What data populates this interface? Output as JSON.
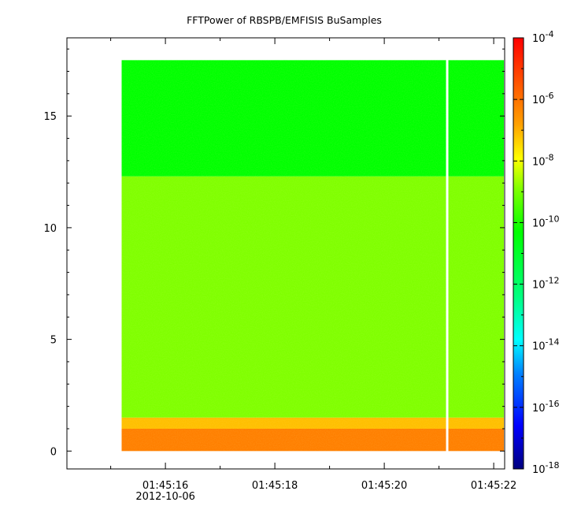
{
  "chart_data": {
    "type": "heatmap",
    "title": "FFTPower of RBSPB/EMFISIS  BuSamples",
    "xlabel": "",
    "ylabel": "",
    "x_date": "2012-10-06",
    "x_ticks": [
      "01:45:16",
      "01:45:18",
      "01:45:20",
      "01:45:22"
    ],
    "y_ticks": [
      "0",
      "5",
      "10",
      "15"
    ],
    "ylim": [
      -0.8,
      18.5
    ],
    "xlim": [
      "01:45:14.2",
      "01:45:22.2"
    ],
    "data_x_range": [
      "01:45:15.2",
      "01:45:22.2"
    ],
    "data_y_range": [
      0,
      17.5
    ],
    "gap_at": "01:45:21.15",
    "colorbar": {
      "scale": "log",
      "range": [
        1e-18,
        0.0001
      ],
      "tick_bases": [
        "10",
        "10",
        "10",
        "10",
        "10",
        "10",
        "10",
        "10"
      ],
      "tick_exponents": [
        "-4",
        "-6",
        "-8",
        "-10",
        "-12",
        "-14",
        "-16",
        "-18"
      ]
    },
    "bands": [
      {
        "y_from": 0,
        "y_to": 1.0,
        "log_power": -6.0,
        "label": "red/orange"
      },
      {
        "y_from": 1.0,
        "y_to": 1.5,
        "log_power": -8.0,
        "label": "yellow/orange"
      },
      {
        "y_from": 1.5,
        "y_to": 12.3,
        "log_power": -10.5,
        "label": "green"
      },
      {
        "y_from": 12.3,
        "y_to": 17.5,
        "log_power": -12.0,
        "label": "cyan-green"
      }
    ]
  },
  "colors": {
    "colormap": [
      "#00007f",
      "#0000ff",
      "#00bfff",
      "#00ffff",
      "#00ff7f",
      "#00ff00",
      "#7fff00",
      "#ffff00",
      "#ffbf00",
      "#ff7f00",
      "#ff2000",
      "#ff0000"
    ]
  }
}
